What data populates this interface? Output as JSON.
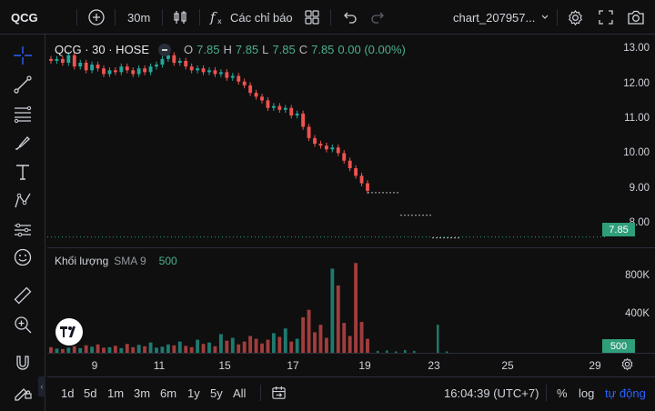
{
  "toolbar": {
    "symbol": "QCG",
    "interval": "30m",
    "indicators_label": "Các chỉ báo",
    "layout_name": "chart_207957..."
  },
  "legend": {
    "title": "QCG · 30 · HOSE",
    "o_key": "O",
    "o_val": "7.85",
    "h_key": "H",
    "h_val": "7.85",
    "l_key": "L",
    "l_val": "7.85",
    "c_key": "C",
    "c_val": "7.85",
    "change": "0.00 (0.00%)"
  },
  "volume_legend": {
    "title": "Khối lượng",
    "sma": "SMA 9",
    "value": "500"
  },
  "price_axis": {
    "labels": [
      "13.00",
      "12.00",
      "11.00",
      "10.00",
      "9.00",
      "8.00"
    ],
    "last_price_tag": "7.85"
  },
  "volume_axis": {
    "labels": [
      "800K",
      "400K"
    ],
    "last_volume_tag": "500"
  },
  "time_axis": {
    "labels": [
      "9",
      "11",
      "15",
      "17",
      "19",
      "23",
      "25",
      "29"
    ]
  },
  "bottom": {
    "ranges": [
      "1d",
      "5d",
      "1m",
      "3m",
      "6m",
      "1y",
      "5y",
      "All"
    ],
    "clock": "16:04:39 (UTC+7)",
    "percent": "%",
    "log": "log",
    "auto": "tự động"
  },
  "colors": {
    "up": "#26a69a",
    "down": "#ef5350",
    "background": "#0f0f0f",
    "accent": "#2962ff",
    "price_tag": "#2f9e7a"
  },
  "chart_data": {
    "type": "candlestick",
    "symbol": "QCG",
    "interval": "30",
    "exchange": "HOSE",
    "ylim": [
      7.6,
      13.2
    ],
    "price_series": [
      12.55,
      12.6,
      12.5,
      12.7,
      12.4,
      12.5,
      12.3,
      12.45,
      12.35,
      12.2,
      12.3,
      12.25,
      12.4,
      12.3,
      12.2,
      12.35,
      12.25,
      12.4,
      12.45,
      12.6,
      12.7,
      12.5,
      12.55,
      12.4,
      12.3,
      12.35,
      12.25,
      12.3,
      12.2,
      12.25,
      12.1,
      12.15,
      12.0,
      11.9,
      11.7,
      11.6,
      11.5,
      11.3,
      11.35,
      11.25,
      11.3,
      11.1,
      11.15,
      10.8,
      10.5,
      10.35,
      10.3,
      10.2,
      10.25,
      10.1,
      9.9,
      9.7,
      9.5,
      9.3,
      9.1
    ],
    "projected_levels": [
      9.05,
      8.45,
      7.85
    ],
    "volume_ylim": [
      0,
      1050
    ],
    "volume_unit": "K",
    "volume_series": [
      60,
      45,
      40,
      55,
      70,
      50,
      80,
      65,
      90,
      55,
      60,
      75,
      50,
      95,
      60,
      85,
      70,
      110,
      55,
      65,
      90,
      80,
      120,
      75,
      60,
      140,
      95,
      110,
      70,
      200,
      130,
      160,
      90,
      120,
      180,
      150,
      100,
      140,
      210,
      170,
      260,
      120,
      150,
      380,
      460,
      220,
      300,
      160,
      900,
      720,
      320,
      180,
      960,
      330,
      150
    ],
    "volume_extra": [
      20,
      25,
      15,
      30,
      20,
      300,
      15
    ],
    "last_price": 7.85,
    "last_volume": 500
  }
}
